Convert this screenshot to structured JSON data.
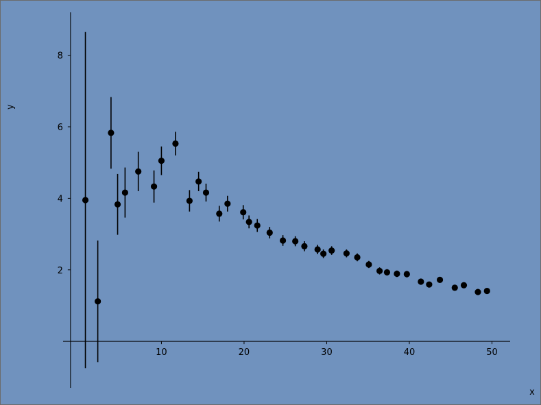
{
  "chart_data": {
    "type": "scatter",
    "title": "",
    "xlabel": "x",
    "ylabel": "y",
    "xlim": [
      -1.9,
      52.2
    ],
    "ylim": [
      -1.3,
      9.2
    ],
    "xticks": [
      10,
      20,
      30,
      40,
      50
    ],
    "yticks": [
      2,
      4,
      6,
      8
    ],
    "x_tick_labels": [
      "10",
      "20",
      "30",
      "40",
      "50"
    ],
    "y_tick_labels": [
      "2",
      "4",
      "6",
      "8"
    ],
    "grid": false,
    "x_axis_at_y": 0,
    "y_axis_at_x": -1.0,
    "series": [
      {
        "marker": "circle",
        "color": "#000000",
        "x": [
          0.8,
          2.3,
          3.9,
          4.7,
          5.6,
          7.2,
          9.1,
          10.0,
          11.7,
          13.4,
          14.5,
          15.4,
          17.0,
          18.0,
          19.9,
          20.6,
          21.6,
          23.1,
          24.7,
          26.2,
          27.3,
          28.9,
          29.6,
          30.6,
          32.4,
          33.7,
          35.1,
          36.4,
          37.3,
          38.5,
          39.7,
          41.4,
          42.4,
          43.7,
          45.5,
          46.6,
          48.3,
          49.4
        ],
        "y": [
          3.95,
          1.12,
          5.83,
          3.83,
          4.16,
          4.75,
          4.33,
          5.05,
          5.53,
          3.93,
          4.47,
          4.16,
          3.57,
          3.85,
          3.61,
          3.34,
          3.24,
          3.04,
          2.82,
          2.8,
          2.66,
          2.57,
          2.45,
          2.54,
          2.46,
          2.35,
          2.15,
          1.97,
          1.93,
          1.89,
          1.88,
          1.67,
          1.59,
          1.72,
          1.5,
          1.57,
          1.38,
          1.41
        ],
        "yerr": [
          4.7,
          1.7,
          1.0,
          0.85,
          0.7,
          0.55,
          0.45,
          0.4,
          0.33,
          0.3,
          0.27,
          0.25,
          0.22,
          0.22,
          0.2,
          0.18,
          0.18,
          0.16,
          0.15,
          0.14,
          0.14,
          0.13,
          0.12,
          0.12,
          0.11,
          0.11,
          0.1,
          0.1,
          0.09,
          0.09,
          0.09,
          0.08,
          0.08,
          0.08,
          0.07,
          0.07,
          0.07,
          0.07
        ]
      }
    ]
  }
}
